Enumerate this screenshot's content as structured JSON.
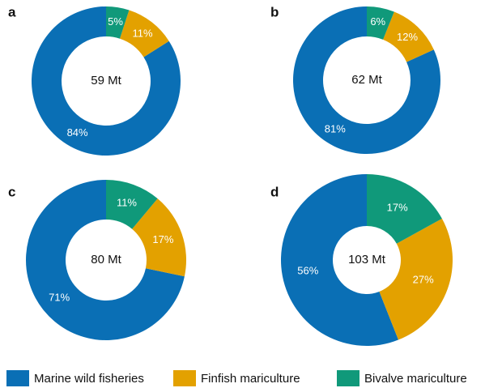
{
  "chart_data": [
    {
      "type": "pie",
      "panel": "a",
      "center_label": "59 Mt",
      "values": [
        84,
        11,
        5
      ],
      "value_labels": [
        "84%",
        "11%",
        "5%"
      ]
    },
    {
      "type": "pie",
      "panel": "b",
      "center_label": "62 Mt",
      "values": [
        81,
        12,
        6
      ],
      "value_labels": [
        "81%",
        "12%",
        "6%"
      ]
    },
    {
      "type": "pie",
      "panel": "c",
      "center_label": "80 Mt",
      "values": [
        71,
        17,
        11
      ],
      "value_labels": [
        "71%",
        "17%",
        "11%"
      ]
    },
    {
      "type": "pie",
      "panel": "d",
      "center_label": "103 Mt",
      "values": [
        56,
        27,
        17
      ],
      "value_labels": [
        "56%",
        "27%",
        "17%"
      ]
    }
  ],
  "legend": {
    "series": [
      {
        "name": "Marine wild fisheries",
        "color": "#0a6fb5"
      },
      {
        "name": "Finfish mariculture",
        "color": "#e3a100"
      },
      {
        "name": "Bivalve mariculture",
        "color": "#10997a"
      }
    ]
  }
}
